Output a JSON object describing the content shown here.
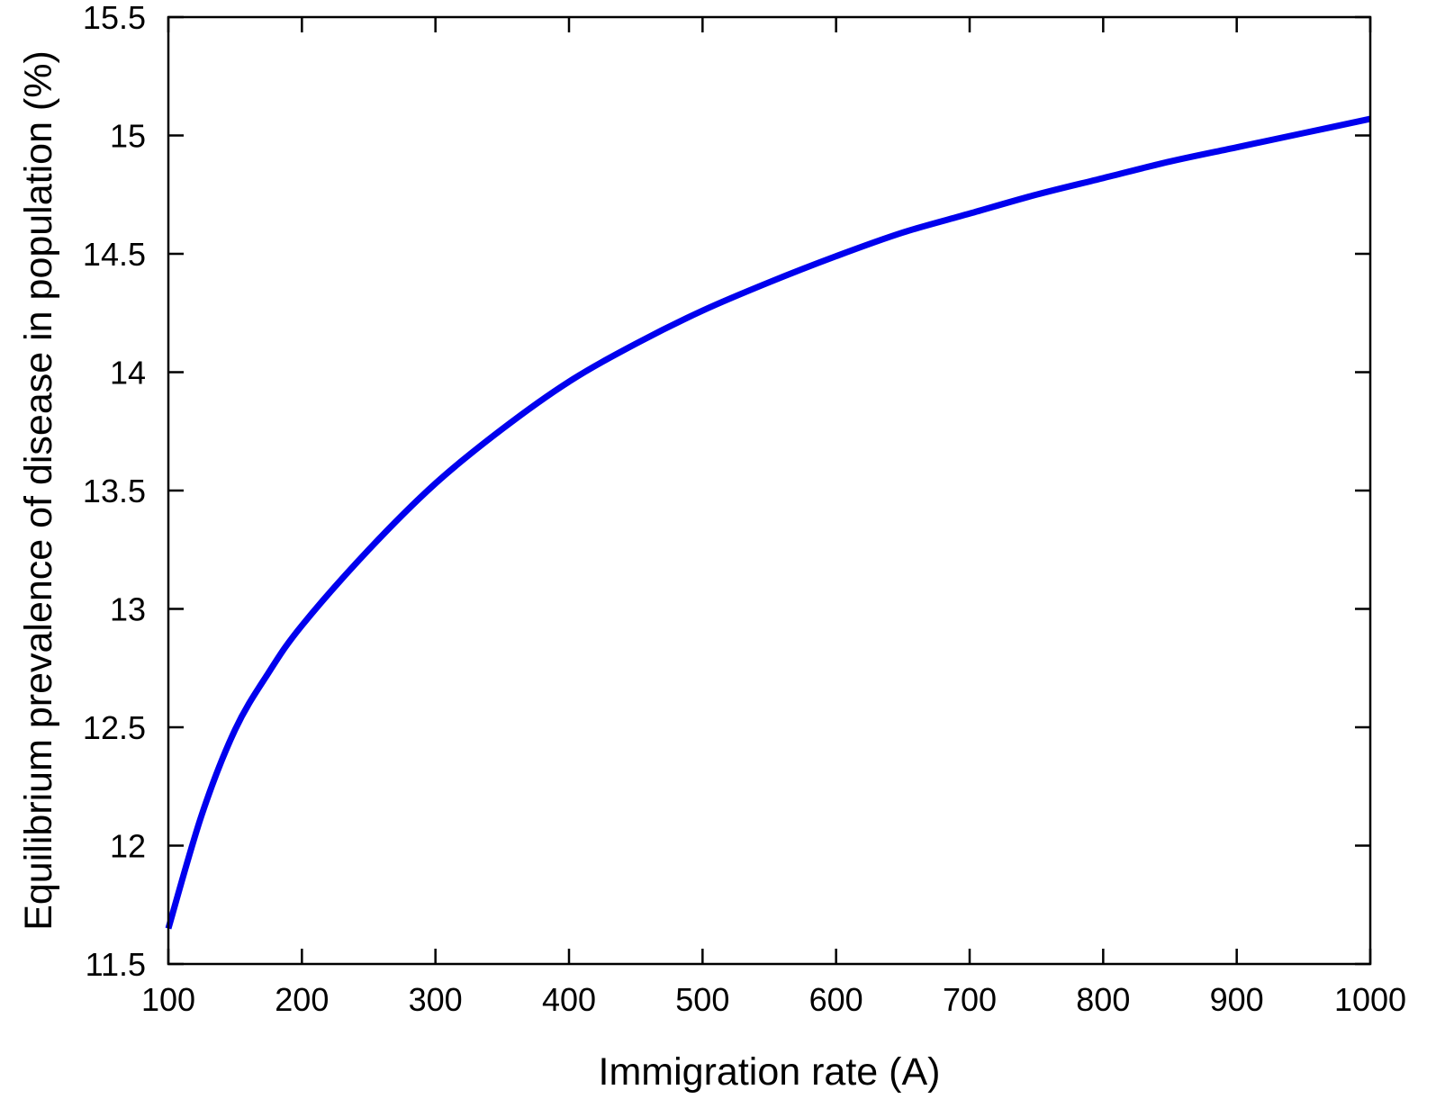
{
  "chart_data": {
    "type": "line",
    "title": "",
    "xlabel": "Immigration rate (A)",
    "ylabel": "Equilibrium prevalence of disease in population (%)",
    "xlim": [
      100,
      1000
    ],
    "ylim": [
      11.5,
      15.5
    ],
    "x_ticks": [
      100,
      200,
      300,
      400,
      500,
      600,
      700,
      800,
      900,
      1000
    ],
    "x_tick_labels": [
      "100",
      "200",
      "300",
      "400",
      "500",
      "600",
      "700",
      "800",
      "900",
      "1000"
    ],
    "y_ticks": [
      11.5,
      12,
      12.5,
      13,
      13.5,
      14,
      14.5,
      15,
      15.5
    ],
    "y_tick_labels": [
      "11.5",
      "12",
      "12.5",
      "13",
      "13.5",
      "14",
      "14.5",
      "15",
      "15.5"
    ],
    "grid": false,
    "legend": "none",
    "series": [
      {
        "color": "#0000ee",
        "x": [
          100,
          125,
          150,
          175,
          200,
          250,
          300,
          350,
          400,
          450,
          500,
          550,
          600,
          650,
          700,
          750,
          800,
          850,
          900,
          950,
          1000
        ],
        "y": [
          11.65,
          12.13,
          12.49,
          12.73,
          12.93,
          13.25,
          13.53,
          13.76,
          13.96,
          14.12,
          14.26,
          14.38,
          14.49,
          14.59,
          14.67,
          14.75,
          14.82,
          14.89,
          14.95,
          15.01,
          15.07
        ]
      }
    ]
  }
}
